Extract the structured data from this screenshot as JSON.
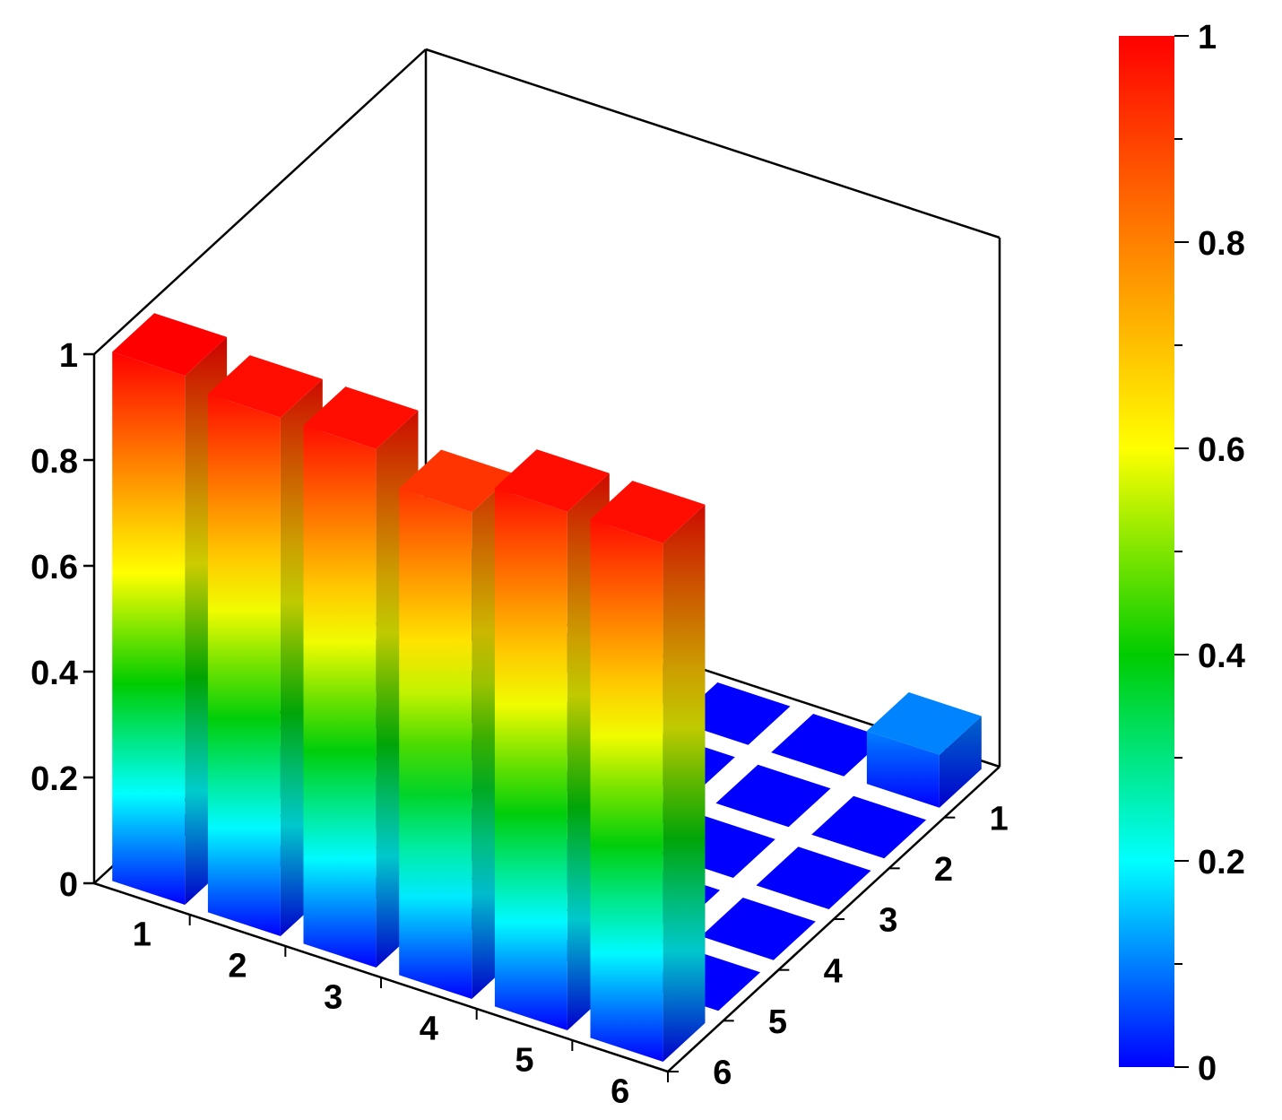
{
  "chart_data": {
    "type": "bar3d",
    "title": "",
    "xlabel": "",
    "ylabel": "",
    "zlabel": "",
    "x_categories": [
      "1",
      "2",
      "3",
      "4",
      "5",
      "6"
    ],
    "y_categories": [
      "1",
      "2",
      "3",
      "4",
      "5",
      "6"
    ],
    "z_ticks": [
      "0",
      "0.2",
      "0.4",
      "0.6",
      "0.8",
      "1"
    ],
    "zlim": [
      0,
      1
    ],
    "values": [
      [
        0.1,
        0,
        0,
        0,
        0,
        0.1
      ],
      [
        0,
        0,
        0,
        0,
        0,
        0
      ],
      [
        0,
        0,
        0,
        0,
        0,
        0
      ],
      [
        0,
        0,
        0,
        0,
        0,
        0
      ],
      [
        0,
        0,
        0,
        0,
        0,
        0
      ],
      [
        1.0,
        0.98,
        0.98,
        0.92,
        0.98,
        0.98
      ]
    ],
    "values_note_axes": "values[y_index][x_index]",
    "colorbar": {
      "ticks": [
        "0",
        "0.2",
        "0.4",
        "0.6",
        "0.8",
        "1"
      ],
      "range": [
        0,
        1
      ],
      "colors": [
        "#0000ff",
        "#00ffff",
        "#00cc00",
        "#ffff00",
        "#ff8000",
        "#ff0000"
      ]
    },
    "grid": false
  }
}
